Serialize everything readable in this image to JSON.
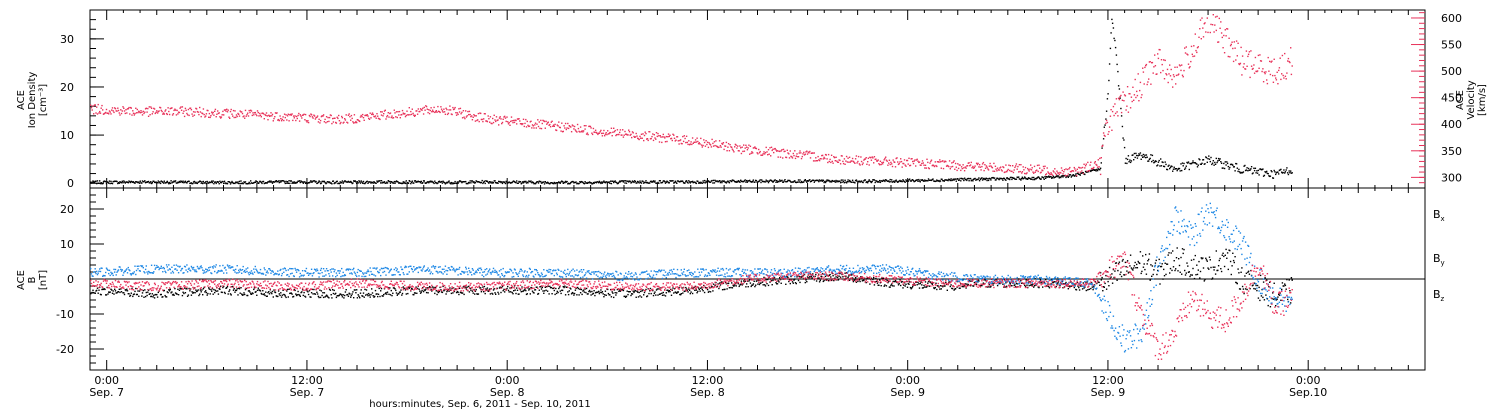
{
  "colors": {
    "density": "#000000",
    "velocity": "#e8325a",
    "bx": "#000000",
    "by": "#1e88e5",
    "bz": "#e8325a"
  },
  "xaxis_title": "hours:minutes, Sep.  6, 2011 - Sep. 10, 2011",
  "x_ticks": [
    {
      "t": 0,
      "time": "0:00",
      "date": "Sep. 7"
    },
    {
      "t": 12,
      "time": "12:00",
      "date": "Sep. 7"
    },
    {
      "t": 24,
      "time": "0:00",
      "date": "Sep. 8"
    },
    {
      "t": 36,
      "time": "12:00",
      "date": "Sep. 8"
    },
    {
      "t": 48,
      "time": "0:00",
      "date": "Sep. 9"
    },
    {
      "t": 60,
      "time": "12:00",
      "date": "Sep. 9"
    },
    {
      "t": 72,
      "time": "0:00",
      "date": "Sep.10"
    }
  ],
  "chart_data": [
    {
      "type": "scatter",
      "panel": "top",
      "ylabel": [
        "ACE",
        "Ion Density",
        "[cm⁻³]"
      ],
      "ylim": [
        -1,
        36
      ],
      "yticks": [
        0,
        10,
        20,
        30
      ],
      "y2label": [
        "ACE",
        "Velocity",
        "[km/s]"
      ],
      "y2lim": [
        280,
        615
      ],
      "y2ticks": [
        300,
        350,
        400,
        450,
        500,
        550,
        600
      ],
      "series": [
        {
          "axis": "left",
          "x": [
            -1,
            2,
            5,
            8,
            11,
            14,
            17,
            20,
            23,
            26,
            29,
            32,
            35,
            38,
            41,
            44,
            47,
            50,
            53,
            56,
            58,
            59.5,
            60,
            60.2,
            60.5,
            61,
            62,
            64,
            66,
            68,
            70,
            71
          ],
          "y": [
            0.3,
            0.4,
            0.3,
            0.3,
            0.4,
            0.3,
            0.4,
            0.3,
            0.4,
            0.3,
            0.3,
            0.4,
            0.4,
            0.5,
            0.6,
            0.5,
            0.6,
            0.8,
            1.0,
            1.2,
            1.8,
            3.0,
            20.0,
            35.0,
            25.0,
            5.0,
            6.0,
            3.0,
            5.0,
            3.0,
            2.0,
            3.0
          ]
        },
        {
          "axis": "right",
          "x": [
            -1,
            2,
            5,
            8,
            11,
            14,
            17,
            20,
            23,
            26,
            29,
            32,
            35,
            38,
            41,
            44,
            47,
            50,
            53,
            56,
            58,
            59.5,
            60,
            61,
            62,
            63,
            64,
            65,
            66,
            67,
            68,
            69,
            70,
            71
          ],
          "y": [
            430,
            425,
            425,
            420,
            415,
            410,
            420,
            430,
            410,
            400,
            390,
            380,
            370,
            355,
            345,
            335,
            330,
            325,
            320,
            315,
            312,
            330,
            410,
            440,
            480,
            520,
            490,
            540,
            600,
            560,
            520,
            510,
            500,
            520
          ]
        }
      ]
    },
    {
      "type": "scatter",
      "panel": "bottom",
      "ylabel": [
        "ACE",
        "B",
        "[nT]"
      ],
      "ylim": [
        -26,
        26
      ],
      "yticks": [
        -20,
        -10,
        0,
        10,
        20
      ],
      "legend_placement": "right",
      "series": [
        {
          "name": "Bx",
          "x": [
            -1,
            3,
            7,
            11,
            15,
            19,
            23,
            27,
            31,
            35,
            38,
            41,
            44,
            47,
            50,
            53,
            56,
            59,
            60,
            61,
            62,
            63,
            64,
            65,
            66,
            67,
            68,
            69,
            70,
            71
          ],
          "y": [
            -3,
            -4,
            -3,
            -4,
            -4,
            -3,
            -3,
            -3,
            -4,
            -3,
            -1,
            0,
            1,
            -1,
            -2,
            -1,
            -1,
            -2,
            0,
            3,
            5,
            2,
            6,
            4,
            3,
            7,
            0,
            -2,
            -5,
            -3
          ]
        },
        {
          "name": "By",
          "x": [
            -1,
            3,
            7,
            11,
            15,
            19,
            23,
            27,
            31,
            35,
            38,
            41,
            44,
            47,
            50,
            53,
            56,
            59,
            60,
            61,
            62,
            63,
            64,
            65,
            66,
            67,
            68,
            69,
            70,
            71
          ],
          "y": [
            2,
            3,
            3,
            2,
            2,
            3,
            2,
            2,
            1,
            2,
            2,
            2,
            3,
            3,
            1,
            0,
            0,
            -1,
            -10,
            -18,
            -15,
            5,
            18,
            12,
            20,
            15,
            10,
            0,
            -5,
            -8
          ]
        },
        {
          "name": "Bz",
          "x": [
            -1,
            3,
            7,
            11,
            15,
            19,
            23,
            27,
            31,
            35,
            38,
            41,
            44,
            47,
            50,
            53,
            56,
            59,
            60,
            61,
            62,
            63,
            64,
            65,
            66,
            67,
            68,
            69,
            70,
            71
          ],
          "y": [
            -1,
            -2,
            -1,
            -2,
            -1,
            -2,
            -2,
            -1,
            -2,
            -2,
            0,
            1,
            1,
            0,
            -1,
            -1,
            -1,
            -1,
            3,
            5,
            -10,
            -20,
            -15,
            -5,
            -10,
            -12,
            -5,
            5,
            -8,
            -5
          ]
        }
      ]
    }
  ]
}
